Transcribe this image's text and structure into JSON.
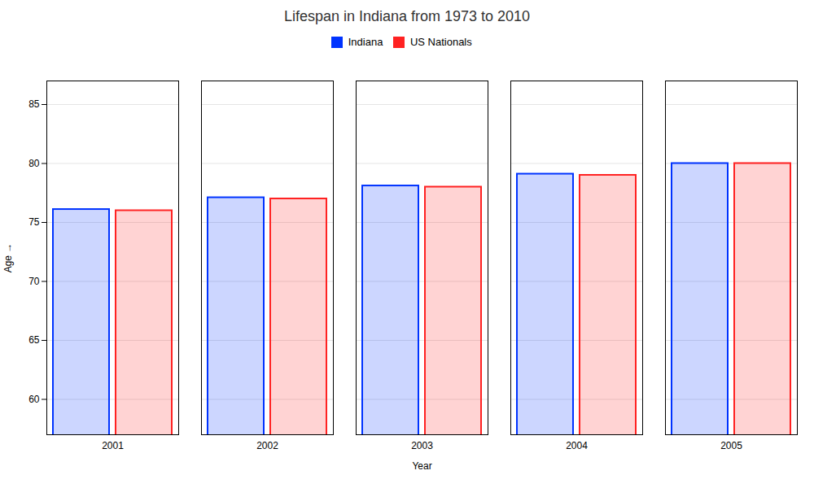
{
  "chart_data": {
    "type": "bar",
    "title": "Lifespan in Indiana from 1973 to 2010",
    "xlabel": "Year",
    "ylabel": "Age",
    "categories": [
      "2001",
      "2002",
      "2003",
      "2004",
      "2005"
    ],
    "series": [
      {
        "name": "Indiana",
        "color": "#0033ff",
        "values": [
          76.1,
          77.1,
          78.1,
          79.1,
          80.0
        ]
      },
      {
        "name": "US Nationals",
        "color": "#ff2222",
        "values": [
          76.0,
          77.0,
          78.0,
          79.0,
          80.0
        ]
      }
    ],
    "ylim": [
      57,
      87
    ],
    "yticks": [
      60,
      65,
      70,
      75,
      80,
      85
    ],
    "grid": true,
    "legend": "top"
  }
}
